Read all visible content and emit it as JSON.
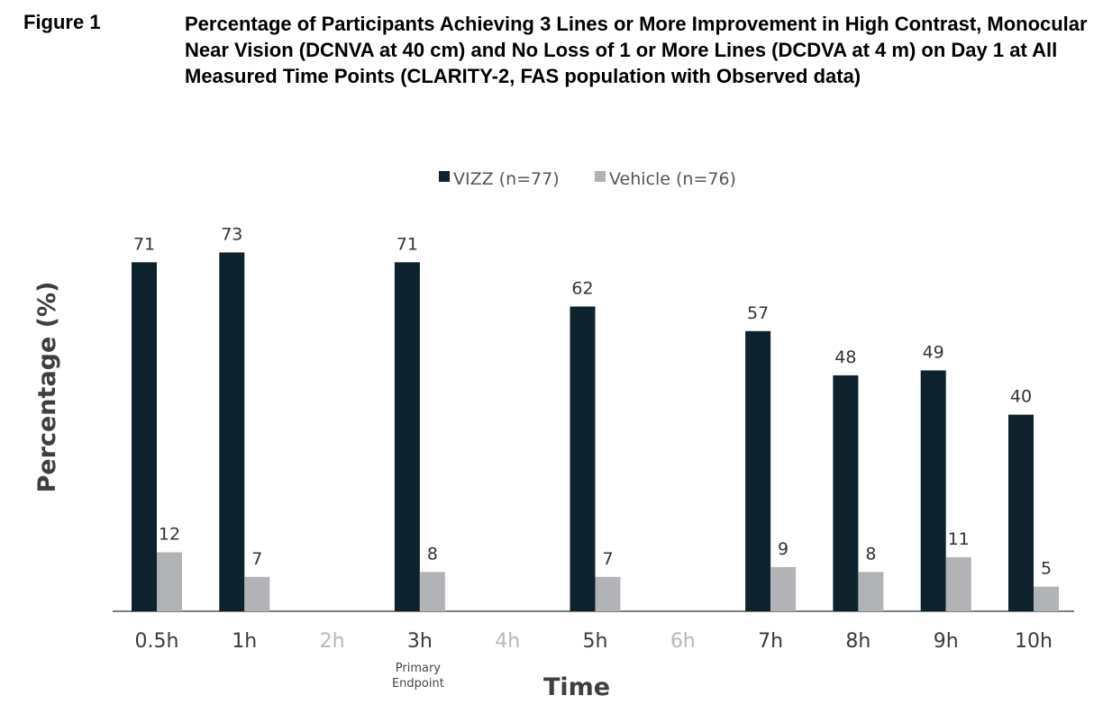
{
  "figure_label": "Figure 1",
  "chart_data": {
    "type": "bar",
    "title": "Percentage of Participants Achieving 3 Lines or More Improvement in High Contrast, Monocular Near Vision (DCNVA at 40 cm) and No Loss of 1 or More Lines (DCDVA at 4 m) on Day 1 at All Measured Time Points (CLARITY-2, FAS population with Observed data)",
    "xlabel": "Time",
    "ylabel": "Percentage (%)",
    "ylim": [
      0,
      80
    ],
    "categories": [
      "0.5h",
      "1h",
      "2h",
      "3h",
      "4h",
      "5h",
      "6h",
      "7h",
      "8h",
      "9h",
      "10h"
    ],
    "measured": [
      true,
      true,
      false,
      true,
      false,
      true,
      false,
      true,
      true,
      true,
      true
    ],
    "series": [
      {
        "name": "VIZZ (n=77)",
        "color": "#0e222e",
        "values": [
          71,
          73,
          null,
          71,
          null,
          62,
          null,
          57,
          48,
          49,
          40
        ]
      },
      {
        "name": "Vehicle (n=76)",
        "color": "#b1b3b6",
        "values": [
          12,
          7,
          null,
          8,
          null,
          7,
          null,
          9,
          8,
          11,
          5
        ]
      }
    ],
    "annotations": [
      {
        "category": "3h",
        "text": [
          "Primary",
          "Endpoint"
        ]
      }
    ],
    "legend_position": "top-center",
    "grid": false
  }
}
